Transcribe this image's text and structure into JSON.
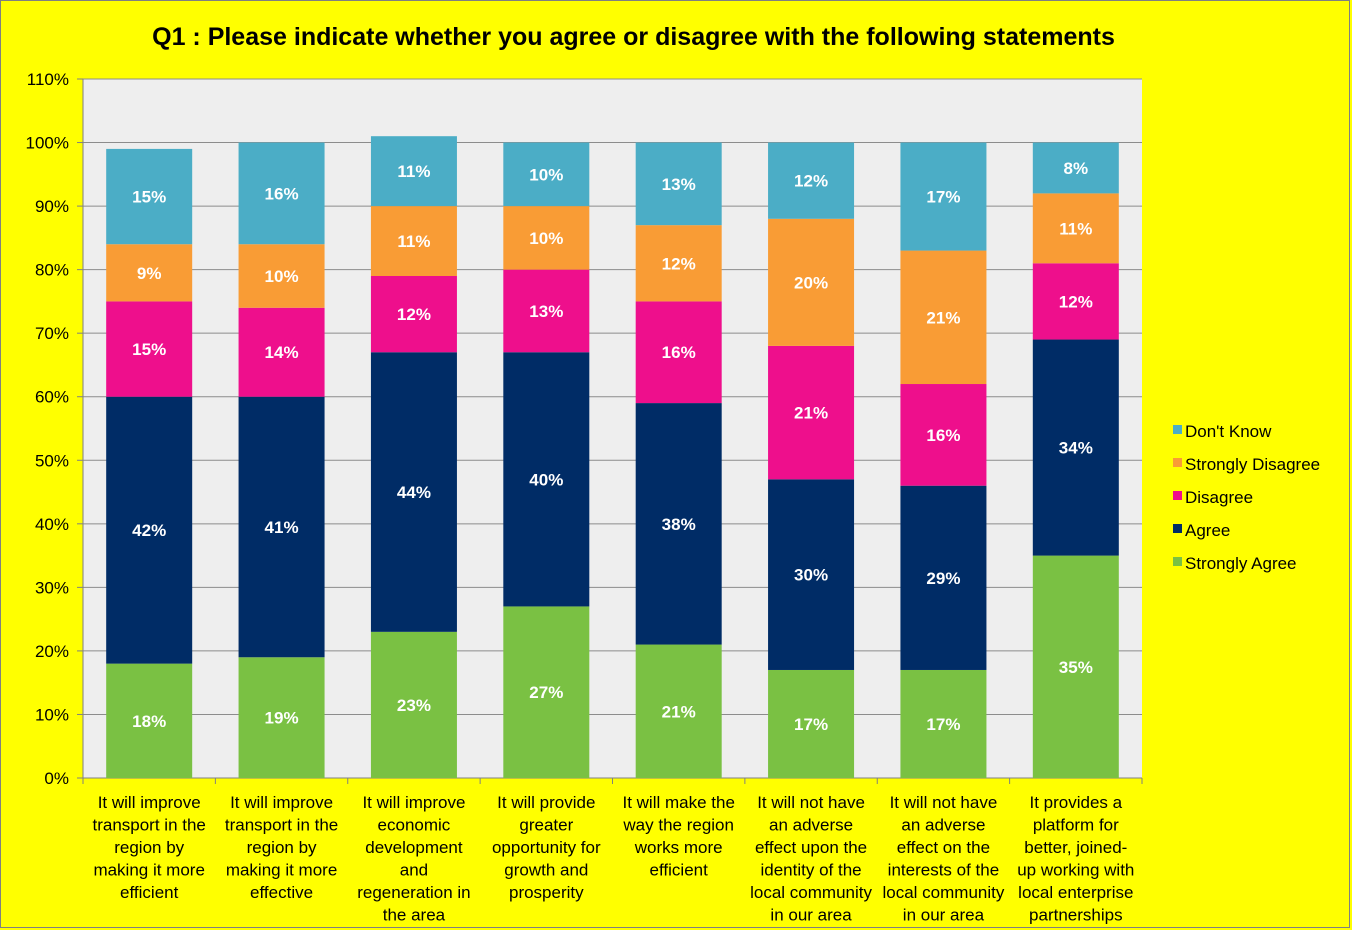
{
  "chart_data": {
    "type": "bar",
    "stacked": true,
    "title": "Q1 : Please indicate whether you agree or disagree with the following statements",
    "ylim": [
      0,
      110
    ],
    "yticks": [
      "0%",
      "10%",
      "20%",
      "30%",
      "40%",
      "50%",
      "60%",
      "70%",
      "80%",
      "90%",
      "100%",
      "110%"
    ],
    "grid": true,
    "legend_position": "right",
    "categories": [
      [
        "It will improve",
        "transport in the",
        "region by",
        "making it more",
        "efficient"
      ],
      [
        "It will improve",
        "transport in the",
        "region by",
        "making it more",
        "effective"
      ],
      [
        "It will improve",
        "economic",
        "development",
        "and",
        "regeneration in",
        "the area"
      ],
      [
        "It will provide",
        "greater",
        "opportunity for",
        "growth and",
        "prosperity"
      ],
      [
        "It will make the",
        "way the region",
        "works more",
        "efficient"
      ],
      [
        "It will not have",
        "an adverse",
        "effect upon the",
        "identity of the",
        "local community",
        "in our area"
      ],
      [
        "It will not have",
        "an adverse",
        "effect on the",
        "interests of the",
        "local community",
        "in our area"
      ],
      [
        "It provides a",
        "platform for",
        "better, joined-",
        "up working with",
        "local enterprise",
        "partnerships"
      ]
    ],
    "series": [
      {
        "name": "Strongly Agree",
        "color": "#7ac143",
        "values": [
          18,
          19,
          23,
          27,
          21,
          17,
          17,
          35
        ],
        "labels": [
          "18%",
          "19%",
          "23%",
          "27%",
          "21%",
          "17%",
          "17%",
          "35%"
        ]
      },
      {
        "name": "Agree",
        "color": "#002c66",
        "values": [
          42,
          41,
          44,
          40,
          38,
          30,
          29,
          34
        ],
        "labels": [
          "42%",
          "41%",
          "44%",
          "40%",
          "38%",
          "30%",
          "29%",
          "34%"
        ]
      },
      {
        "name": "Disagree",
        "color": "#ee0f8c",
        "values": [
          15,
          14,
          12,
          13,
          16,
          21,
          16,
          12
        ],
        "labels": [
          "15%",
          "14%",
          "12%",
          "13%",
          "16%",
          "21%",
          "16%",
          "12%"
        ]
      },
      {
        "name": "Strongly Disagree",
        "color": "#f99c35",
        "values": [
          9,
          10,
          11,
          10,
          12,
          20,
          21,
          11
        ],
        "labels": [
          "9%",
          "10%",
          "11%",
          "10%",
          "12%",
          "20%",
          "21%",
          "11%"
        ]
      },
      {
        "name": "Don't Know",
        "color": "#4badc6",
        "values": [
          15,
          16,
          11,
          10,
          13,
          12,
          17,
          8
        ],
        "labels": [
          "15%",
          "16%",
          "11%",
          "10%",
          "13%",
          "12%",
          "17%",
          "8%"
        ]
      }
    ],
    "legend_order": [
      "Don't Know",
      "Strongly Disagree",
      "Disagree",
      "Agree",
      "Strongly Agree"
    ]
  }
}
